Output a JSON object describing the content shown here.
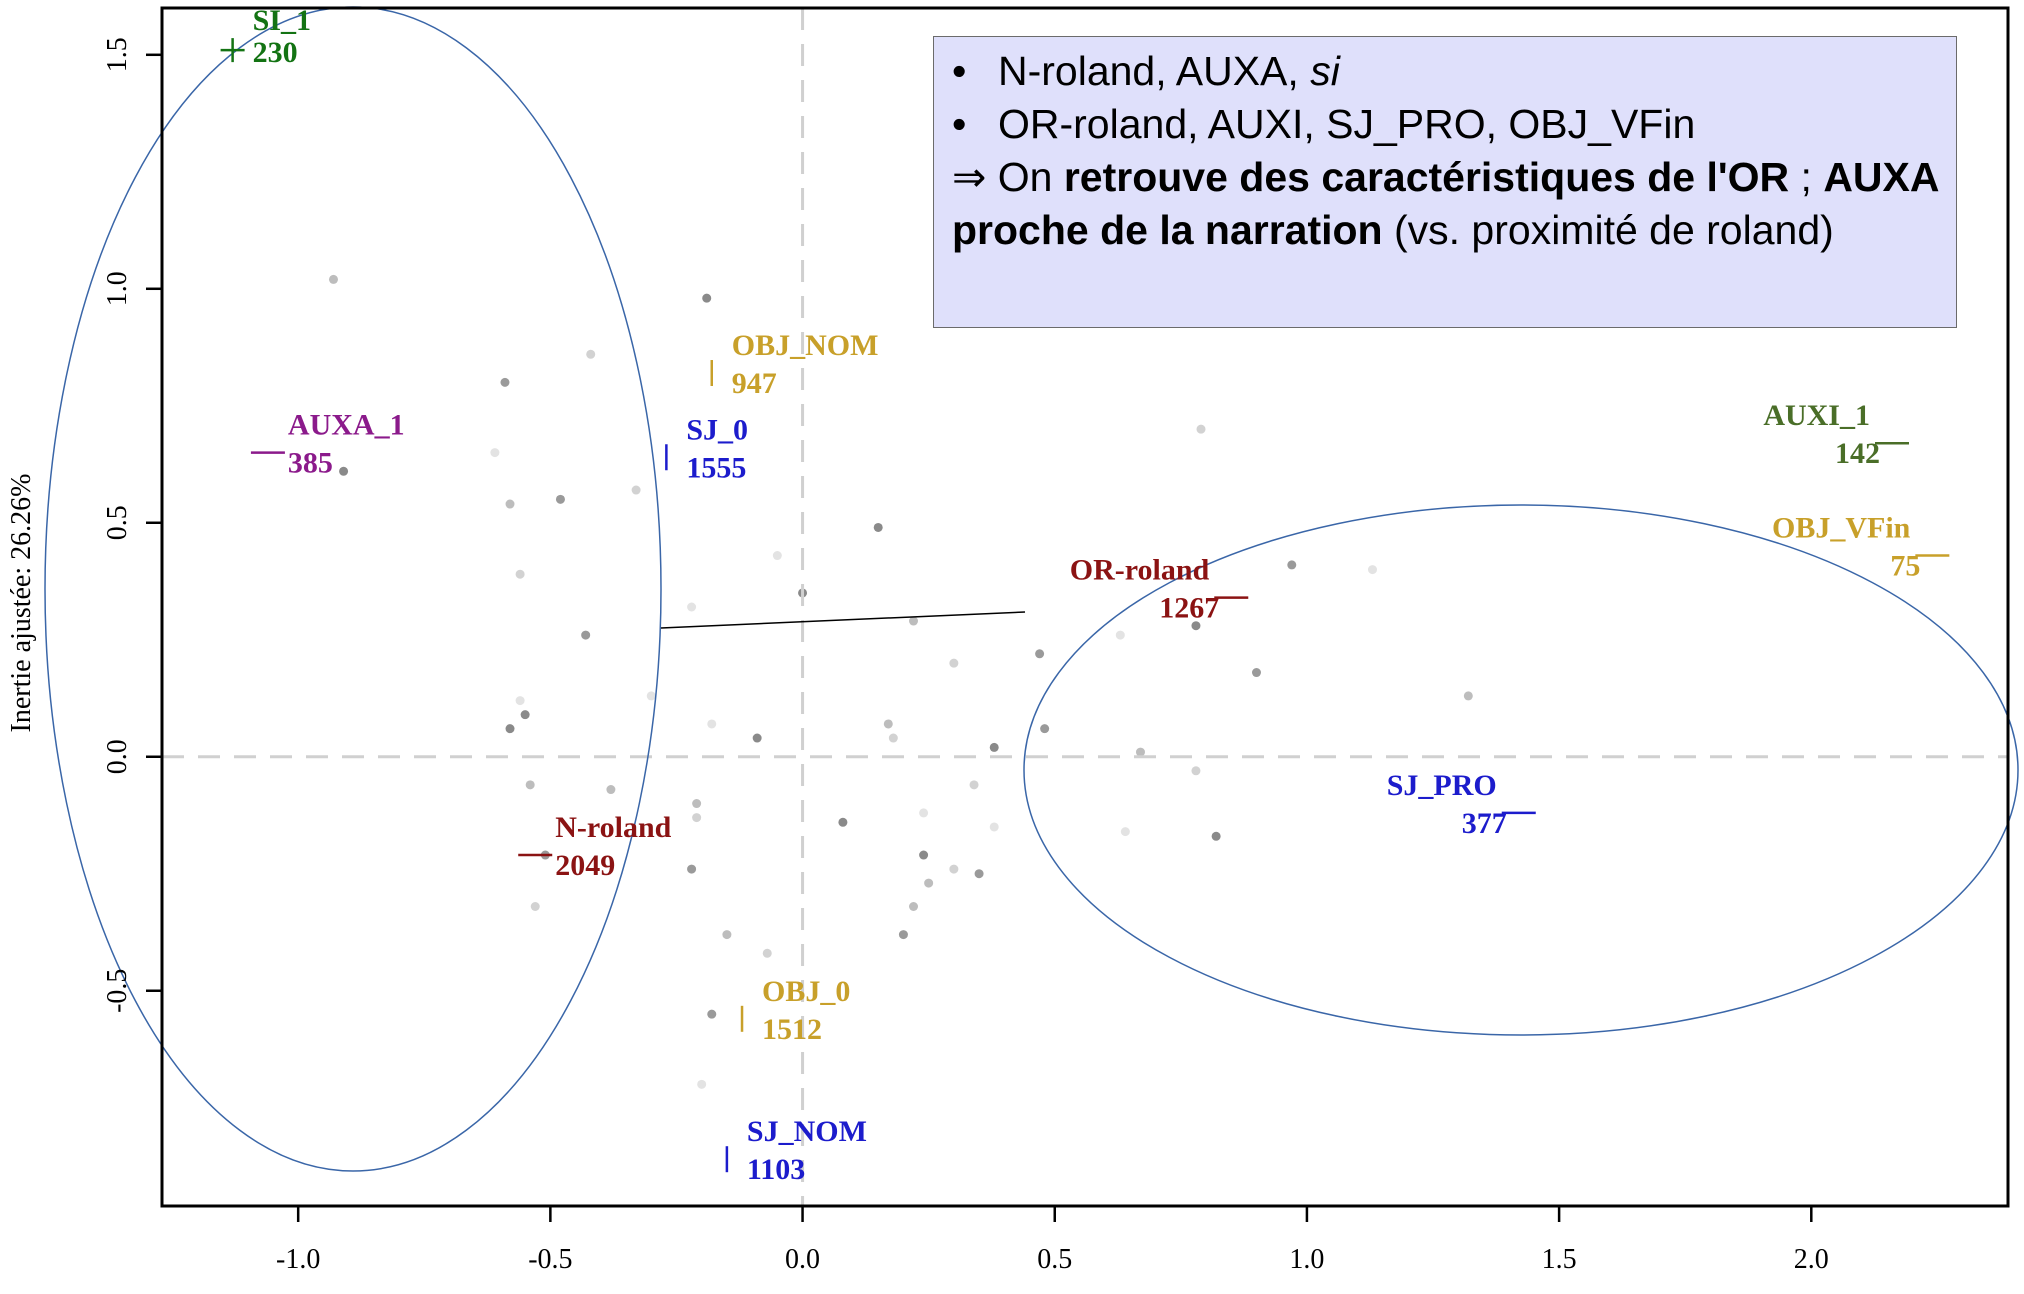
{
  "chart_data": {
    "type": "scatter",
    "ylabel": "Inertie ajustée: 26.26%",
    "xlabel": "",
    "xlim": [
      -1.27,
      2.39
    ],
    "ylim": [
      -0.96,
      1.6
    ],
    "x_ticks": [
      "-1.0",
      "-0.5",
      "0.0",
      "0.5",
      "1.0",
      "1.5",
      "2.0"
    ],
    "x_tick_values": [
      -1.0,
      -0.5,
      0.0,
      0.5,
      1.0,
      1.5,
      2.0
    ],
    "y_ticks": [
      "-0.5",
      "0.0",
      "0.5",
      "1.0",
      "1.5"
    ],
    "y_tick_values": [
      -0.5,
      0.0,
      0.5,
      1.0,
      1.5
    ],
    "reference_lines": {
      "x": 0,
      "y": 0,
      "style": "dashed",
      "color": "#d0d0d0"
    },
    "labeled_points": [
      {
        "name": "SI_1",
        "count": "230",
        "x": -1.13,
        "y": 1.51,
        "color": "#137313",
        "marker": "+",
        "label_side": "right"
      },
      {
        "name": "AUXA_1",
        "count": "385",
        "x": -1.06,
        "y": 0.65,
        "color": "#8b1a8b",
        "marker": "h",
        "label_side": "right"
      },
      {
        "name": "OBJ_NOM",
        "count": "947",
        "x": -0.18,
        "y": 0.82,
        "color": "#c8a02a",
        "marker": "v",
        "label_side": "right"
      },
      {
        "name": "SJ_0",
        "count": "1555",
        "x": -0.27,
        "y": 0.64,
        "color": "#1c1ccc",
        "marker": "v",
        "label_side": "right"
      },
      {
        "name": "OR-roland",
        "count": "1267",
        "x": 0.85,
        "y": 0.34,
        "color": "#8b1313",
        "marker": "h",
        "label_side": "left"
      },
      {
        "name": "N-roland",
        "count": "2049",
        "x": -0.53,
        "y": -0.21,
        "color": "#8b1313",
        "marker": "h",
        "label_side": "right"
      },
      {
        "name": "OBJ_0",
        "count": "1512",
        "x": -0.12,
        "y": -0.56,
        "color": "#c8a02a",
        "marker": "v",
        "label_side": "right"
      },
      {
        "name": "SJ_NOM",
        "count": "1103",
        "x": -0.15,
        "y": -0.86,
        "color": "#1c1ccc",
        "marker": "v",
        "label_side": "right"
      },
      {
        "name": "AUXI_1",
        "count": "142",
        "x": 2.16,
        "y": 0.67,
        "color": "#4a6e28",
        "marker": "h",
        "label_side": "left"
      },
      {
        "name": "OBJ_VFin",
        "count": "75",
        "x": 2.24,
        "y": 0.43,
        "color": "#c8a02a",
        "marker": "h",
        "label_side": "left"
      },
      {
        "name": "SJ_PRO",
        "count": "377",
        "x": 1.42,
        "y": -0.12,
        "color": "#1c1ccc",
        "marker": "h",
        "label_side": "left"
      }
    ],
    "background_points": [
      [
        -0.93,
        1.02
      ],
      [
        -0.42,
        0.86
      ],
      [
        -0.59,
        0.8
      ],
      [
        -0.61,
        0.65
      ],
      [
        -0.91,
        0.61
      ],
      [
        -0.58,
        0.54
      ],
      [
        -0.56,
        0.39
      ],
      [
        -0.43,
        0.26
      ],
      [
        -0.56,
        0.12
      ],
      [
        -0.55,
        0.09
      ],
      [
        -0.54,
        -0.06
      ],
      [
        -0.53,
        -0.32
      ],
      [
        -0.51,
        -0.21
      ],
      [
        -0.22,
        0.32
      ],
      [
        -0.19,
        0.98
      ],
      [
        -0.21,
        -0.1
      ],
      [
        -0.21,
        -0.13
      ],
      [
        -0.22,
        -0.24
      ],
      [
        -0.18,
        0.07
      ],
      [
        -0.09,
        0.04
      ],
      [
        -0.15,
        -0.38
      ],
      [
        -0.07,
        -0.42
      ],
      [
        -0.18,
        -0.55
      ],
      [
        -0.2,
        -0.7
      ],
      [
        0.15,
        0.49
      ],
      [
        0.17,
        0.07
      ],
      [
        0.18,
        0.04
      ],
      [
        0.2,
        -0.38
      ],
      [
        0.24,
        -0.12
      ],
      [
        0.24,
        -0.21
      ],
      [
        0.25,
        -0.27
      ],
      [
        0.3,
        -0.24
      ],
      [
        0.35,
        -0.25
      ],
      [
        0.38,
        -0.15
      ],
      [
        0.38,
        0.02
      ],
      [
        0.22,
        0.29
      ],
      [
        0.3,
        0.2
      ],
      [
        0.47,
        0.22
      ],
      [
        0.63,
        0.26
      ],
      [
        0.78,
        0.28
      ],
      [
        0.67,
        0.01
      ],
      [
        0.78,
        -0.03
      ],
      [
        0.9,
        0.18
      ],
      [
        0.64,
        -0.16
      ],
      [
        0.82,
        -0.17
      ],
      [
        1.32,
        0.13
      ],
      [
        0.79,
        0.7
      ],
      [
        0.97,
        0.41
      ],
      [
        -0.05,
        0.43
      ],
      [
        0.0,
        0.35
      ],
      [
        -0.38,
        -0.07
      ],
      [
        -0.33,
        0.57
      ],
      [
        -0.48,
        0.55
      ],
      [
        -0.3,
        0.13
      ],
      [
        0.08,
        -0.14
      ],
      [
        0.22,
        -0.32
      ],
      [
        0.34,
        -0.06
      ],
      [
        0.48,
        0.06
      ],
      [
        1.13,
        0.4
      ],
      [
        -0.58,
        0.06
      ]
    ]
  },
  "annotation": {
    "bullet1_text": "N-roland, AUXA, ",
    "bullet1_italic": "si",
    "bullet2_text": "OR-roland, AUXI, SJ_PRO, OBJ_VFin",
    "conclusion_arrow": "⇒ On ",
    "conclusion_bold1": "retrouve des caractéristiques de l'OR",
    "conclusion_sep": " ; ",
    "conclusion_bold2": "AUXA proche de la narration",
    "conclusion_end": " (vs. proximité de roland)"
  }
}
